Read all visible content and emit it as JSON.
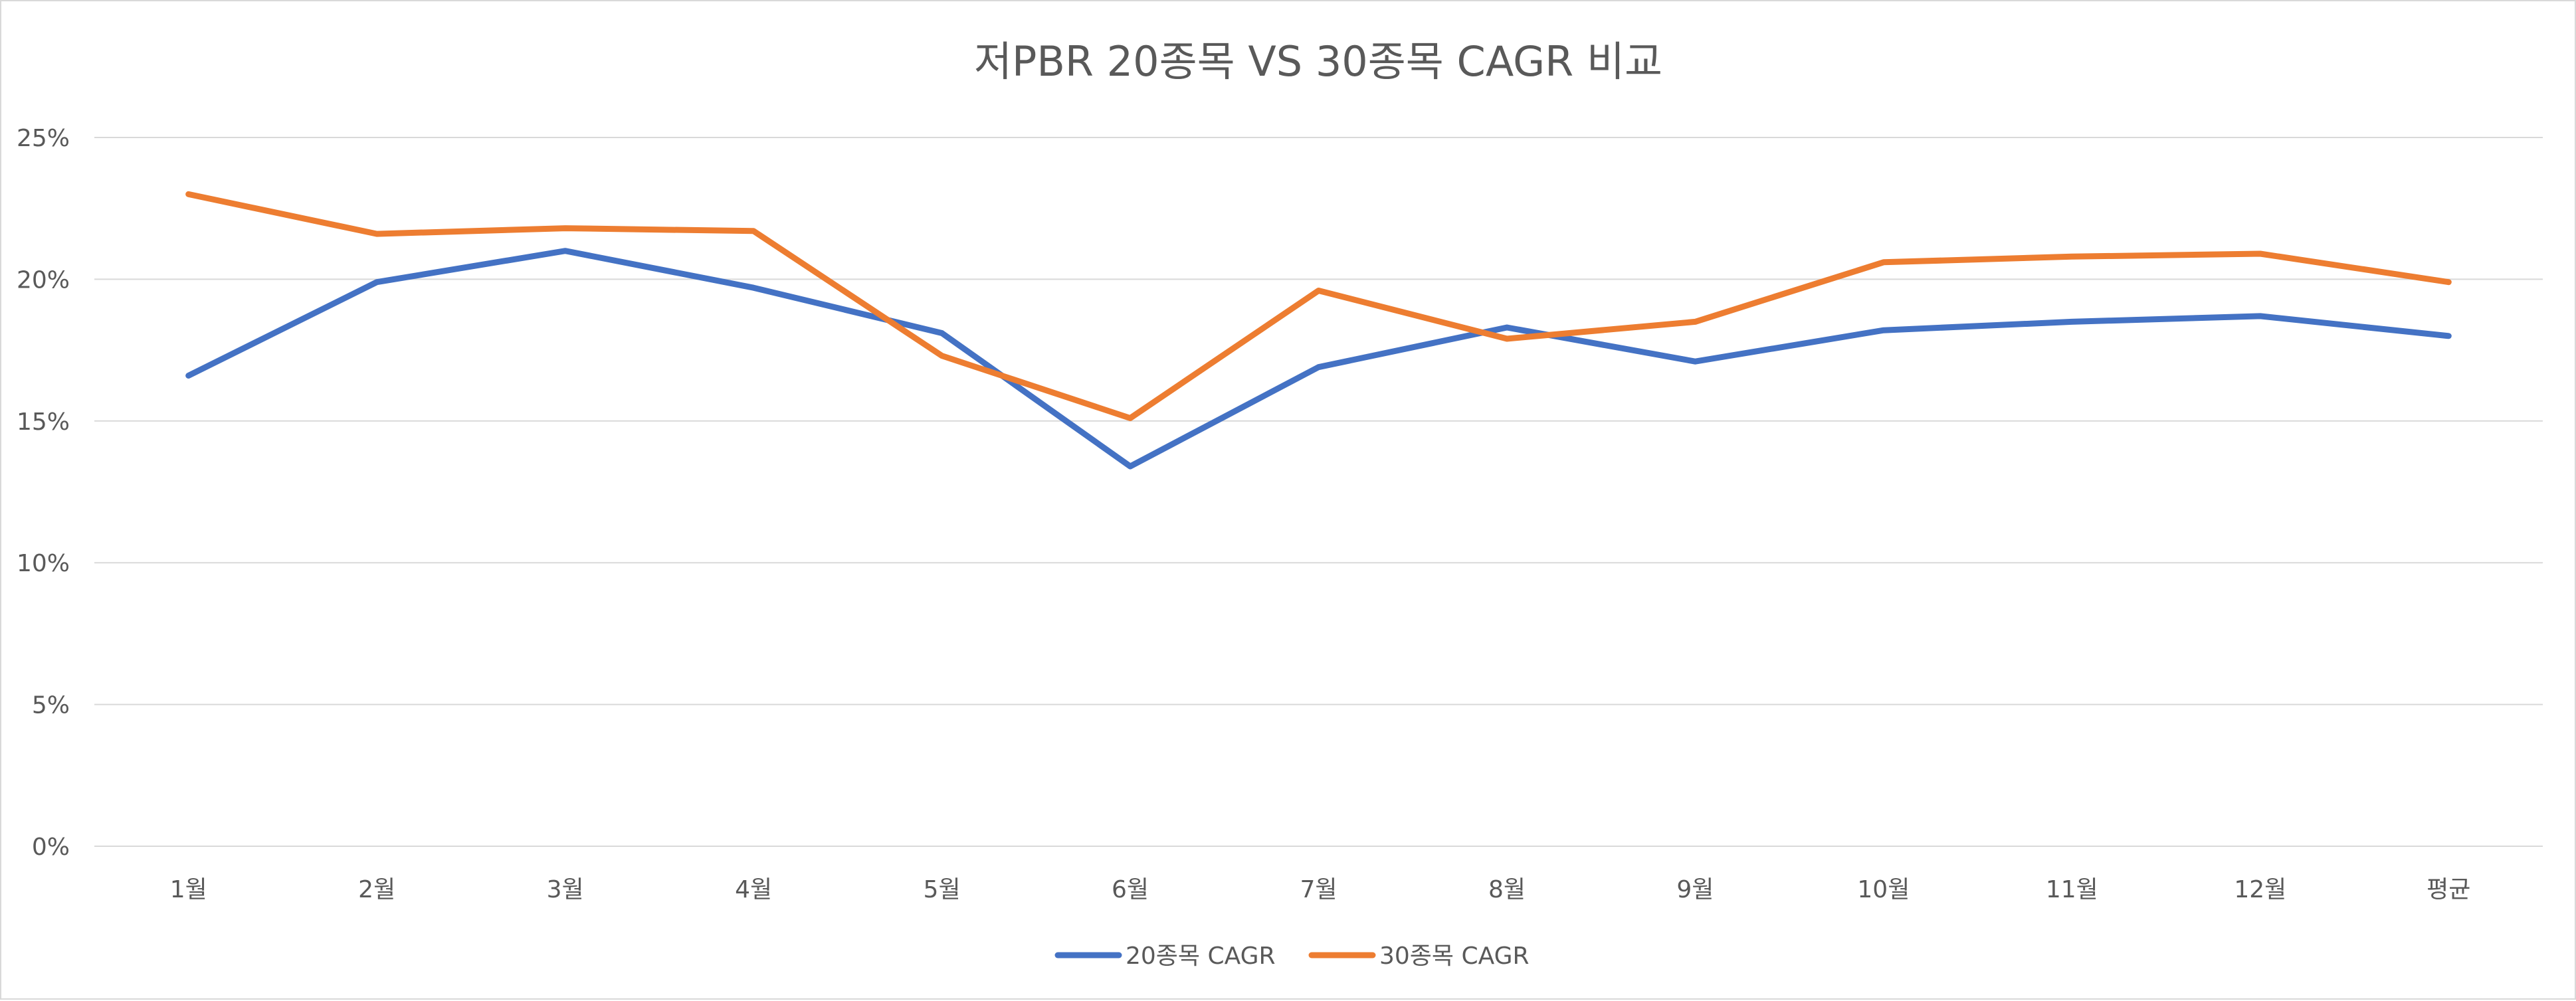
{
  "chart_data": {
    "type": "line",
    "title": "저PBR 20종목 VS 30종목 CAGR 비교",
    "categories": [
      "1월",
      "2월",
      "3월",
      "4월",
      "5월",
      "6월",
      "7월",
      "8월",
      "9월",
      "10월",
      "11월",
      "12월",
      "평균"
    ],
    "ylim": [
      0,
      25
    ],
    "yticks": [
      0,
      5,
      10,
      15,
      20,
      25
    ],
    "ytick_labels": [
      "0%",
      "5%",
      "10%",
      "15%",
      "20%",
      "25%"
    ],
    "grid": true,
    "legend_position": "bottom",
    "xlabel": "",
    "ylabel": "",
    "series": [
      {
        "name": "20종목 CAGR",
        "color": "#4472c4",
        "values": [
          16.6,
          19.9,
          21.0,
          19.7,
          18.1,
          13.4,
          16.9,
          18.3,
          17.1,
          18.2,
          18.5,
          18.7,
          18.0
        ]
      },
      {
        "name": "30종목 CAGR",
        "color": "#ed7d31",
        "values": [
          23.0,
          21.6,
          21.8,
          21.7,
          17.3,
          15.1,
          19.6,
          17.9,
          18.5,
          20.6,
          20.8,
          20.9,
          19.9
        ]
      }
    ]
  }
}
